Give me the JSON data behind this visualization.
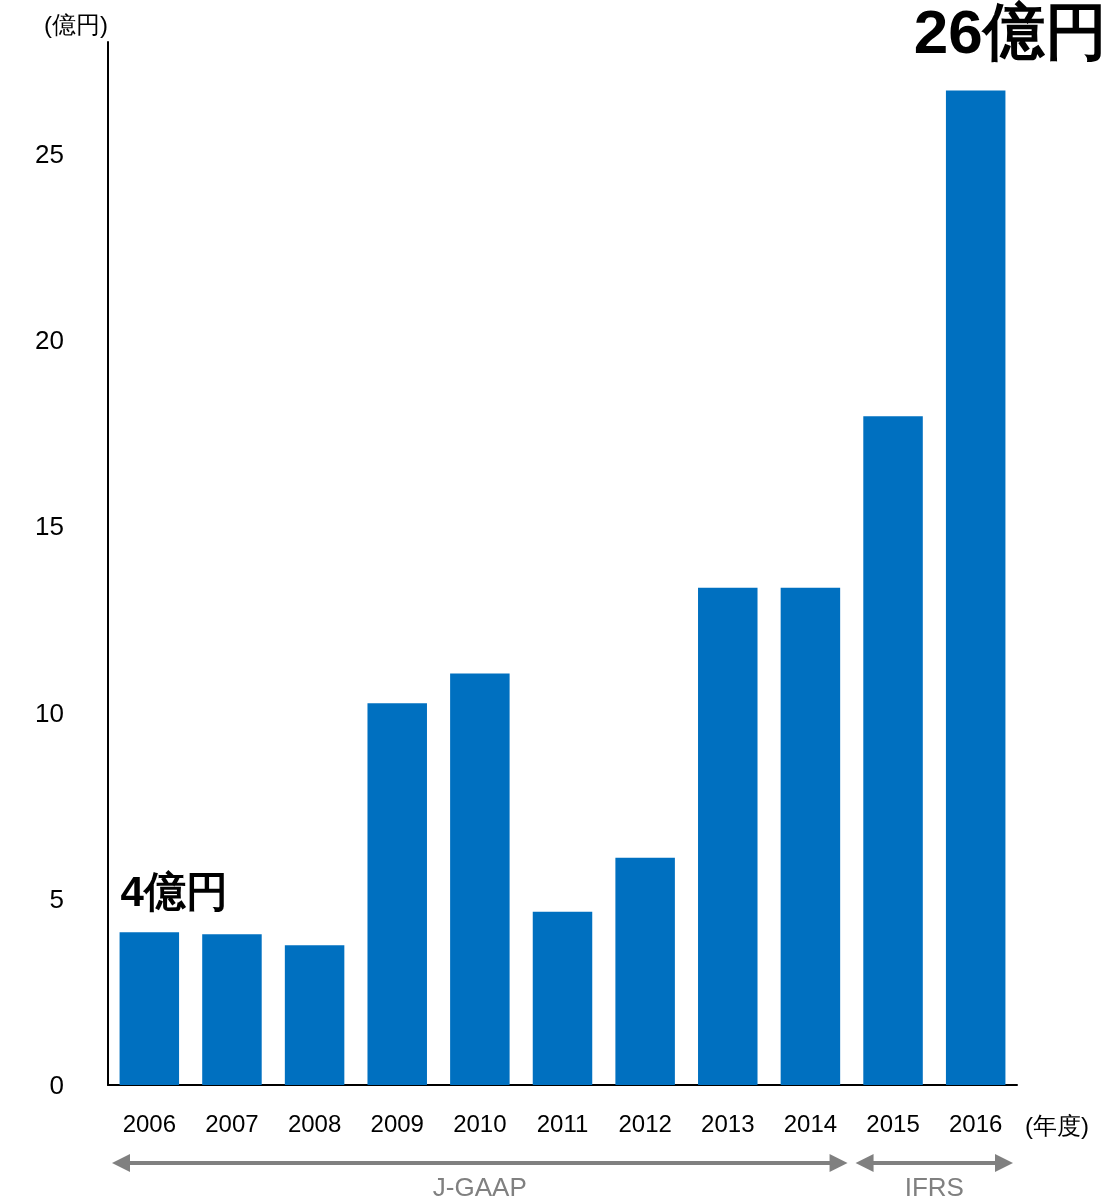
{
  "chart_data": {
    "type": "bar",
    "ylabel": "(億円)",
    "xlabel": "(年度)",
    "categories": [
      "2006",
      "2007",
      "2008",
      "2009",
      "2010",
      "2011",
      "2012",
      "2013",
      "2014",
      "2015",
      "2016"
    ],
    "values": [
      4.1,
      4.05,
      3.75,
      10.25,
      11.05,
      4.65,
      6.1,
      13.35,
      13.35,
      17.95,
      26.7
    ],
    "color": "#0070c0",
    "ylim": [
      0,
      28
    ],
    "yticks": [
      0,
      5,
      10,
      15,
      20,
      25
    ],
    "grid": false,
    "annotations": [
      {
        "text": "4億円",
        "x": "2006",
        "y": 4.1
      },
      {
        "text": "26億円",
        "x": "2016",
        "y": 26.7
      },
      "J-GAAP",
      "IFRS"
    ]
  }
}
